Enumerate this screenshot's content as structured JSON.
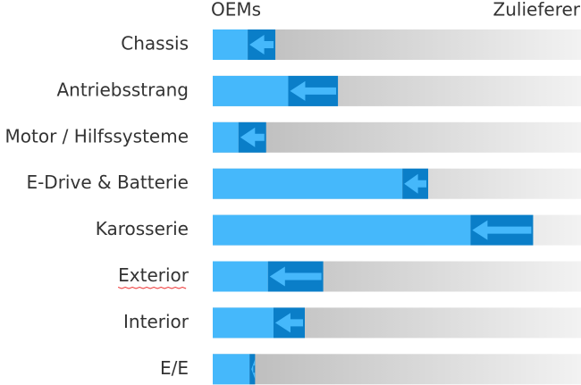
{
  "chart_data": {
    "type": "bar",
    "left_label": "OEMs",
    "right_label": "Zulieferer",
    "categories": [
      "Chassis",
      "Antriebsstrang",
      "Motor / Hilfssysteme",
      "E-Drive & Batterie",
      "Karosserie",
      "Exterior",
      "Interior",
      "E/E"
    ],
    "series": [
      {
        "color": "#45b8fb",
        "values": [
          9.5,
          20.5,
          7,
          51.5,
          70,
          15,
          16.5,
          10
        ]
      },
      {
        "color": "#0a7ec8",
        "values": [
          7.5,
          13.5,
          7.5,
          7,
          17,
          15,
          8.5,
          1.5
        ]
      }
    ],
    "xlim": [
      0,
      100
    ]
  }
}
